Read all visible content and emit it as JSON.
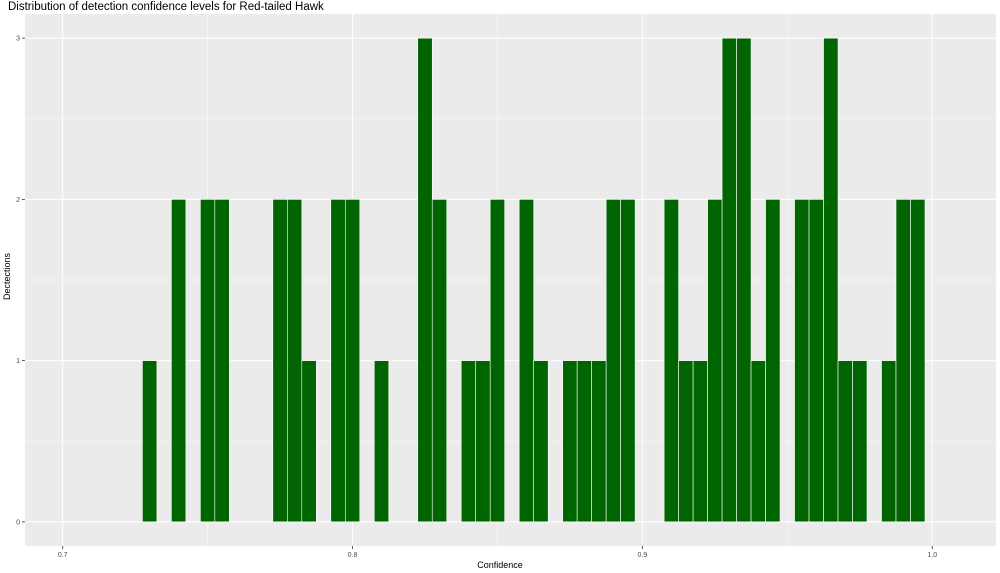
{
  "chart_data": {
    "type": "bar",
    "title": "Distribution of detection confidence levels for Red-tailed Hawk",
    "xlabel": "Confidence",
    "ylabel": "Dectections",
    "xlim": [
      0.687,
      1.022
    ],
    "ylim": [
      -0.15,
      3.15
    ],
    "x_ticks": [
      0.7,
      0.8,
      0.9,
      1.0
    ],
    "x_tick_labels": [
      "0.7",
      "0.8",
      "0.9",
      "1.0"
    ],
    "y_ticks": [
      0,
      1,
      2,
      3
    ],
    "y_tick_labels": [
      "0",
      "1",
      "2",
      "3"
    ],
    "bin_width": 0.005,
    "bars": [
      {
        "x": 0.73,
        "count": 1
      },
      {
        "x": 0.74,
        "count": 2
      },
      {
        "x": 0.75,
        "count": 2
      },
      {
        "x": 0.755,
        "count": 2
      },
      {
        "x": 0.775,
        "count": 2
      },
      {
        "x": 0.78,
        "count": 2
      },
      {
        "x": 0.785,
        "count": 1
      },
      {
        "x": 0.795,
        "count": 2
      },
      {
        "x": 0.8,
        "count": 2
      },
      {
        "x": 0.81,
        "count": 1
      },
      {
        "x": 0.825,
        "count": 3
      },
      {
        "x": 0.83,
        "count": 2
      },
      {
        "x": 0.84,
        "count": 1
      },
      {
        "x": 0.845,
        "count": 1
      },
      {
        "x": 0.85,
        "count": 2
      },
      {
        "x": 0.86,
        "count": 2
      },
      {
        "x": 0.865,
        "count": 1
      },
      {
        "x": 0.875,
        "count": 1
      },
      {
        "x": 0.88,
        "count": 1
      },
      {
        "x": 0.885,
        "count": 1
      },
      {
        "x": 0.89,
        "count": 2
      },
      {
        "x": 0.895,
        "count": 2
      },
      {
        "x": 0.91,
        "count": 2
      },
      {
        "x": 0.915,
        "count": 1
      },
      {
        "x": 0.92,
        "count": 1
      },
      {
        "x": 0.925,
        "count": 2
      },
      {
        "x": 0.93,
        "count": 3
      },
      {
        "x": 0.935,
        "count": 3
      },
      {
        "x": 0.94,
        "count": 1
      },
      {
        "x": 0.945,
        "count": 2
      },
      {
        "x": 0.955,
        "count": 2
      },
      {
        "x": 0.96,
        "count": 2
      },
      {
        "x": 0.965,
        "count": 3
      },
      {
        "x": 0.97,
        "count": 1
      },
      {
        "x": 0.975,
        "count": 1
      },
      {
        "x": 0.985,
        "count": 1
      },
      {
        "x": 0.99,
        "count": 2
      },
      {
        "x": 0.995,
        "count": 2
      }
    ],
    "bar_color": "#006400",
    "bar_outline": "#ffffff",
    "panel_background": "#ebebeb",
    "grid": true,
    "grid_color": "#ffffff",
    "legend": "none"
  }
}
